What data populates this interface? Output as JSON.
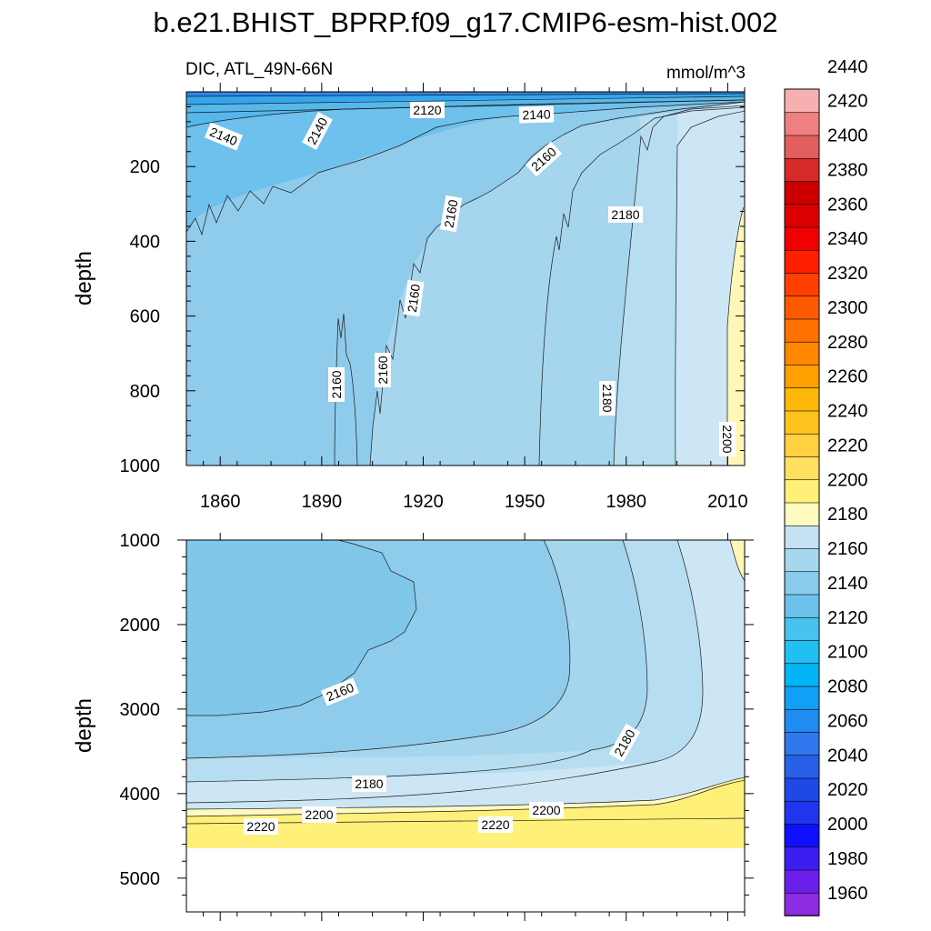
{
  "chart_data": {
    "type": "contour",
    "title": "b.e21.BHIST_BPRP.f09_g17.CMIP6-esm-hist.002",
    "left_subtitle": "DIC, ATL_49N-66N",
    "right_subtitle": "mmol/m^3",
    "ylabel": "depth",
    "colorbar": {
      "levels": [
        1960,
        1980,
        2000,
        2020,
        2040,
        2060,
        2080,
        2100,
        2120,
        2140,
        2160,
        2180,
        2200,
        2220,
        2240,
        2260,
        2280,
        2300,
        2320,
        2340,
        2360,
        2380,
        2400,
        2420,
        2440
      ],
      "colors": [
        "#8b2be2",
        "#6b1fe8",
        "#3c1ff0",
        "#1010ff",
        "#1f36ee",
        "#2048e6",
        "#2860e8",
        "#2f78ee",
        "#1f8cf0",
        "#10a0f5",
        "#00b4f5",
        "#22bff2",
        "#47c3ee",
        "#6cc2eb",
        "#8acbed",
        "#a5d8ee",
        "#c4e2f2",
        "#fffac0",
        "#fff07a",
        "#ffe060",
        "#ffd040",
        "#ffc31e",
        "#ffb70a",
        "#ffa000",
        "#ff8800",
        "#ff7000",
        "#ff5a00",
        "#ff4000",
        "#ff2000",
        "#f00000",
        "#dc0000",
        "#cc0000",
        "#d62a2a",
        "#e35e5e",
        "#f08080",
        "#f7b0b0"
      ]
    },
    "panels": [
      {
        "name": "upper",
        "x_ticks": [
          1860,
          1890,
          1920,
          1950,
          1980,
          2010
        ],
        "xlim": [
          1850,
          2015
        ],
        "y_ticks": [
          200,
          400,
          600,
          800,
          1000
        ],
        "ylim": [
          0,
          1000
        ],
        "contour_labels": [
          "2120",
          "2140",
          "2140",
          "2140",
          "2160",
          "2160",
          "2180",
          "2160",
          "2160",
          "2160",
          "2180",
          "2200"
        ]
      },
      {
        "name": "lower",
        "xlim": [
          1850,
          2015
        ],
        "y_ticks": [
          1000,
          2000,
          3000,
          4000,
          5000
        ],
        "ylim": [
          1000,
          5400
        ],
        "contour_labels": [
          "2160",
          "2180",
          "2180",
          "2200",
          "2200",
          "2220",
          "2220"
        ]
      }
    ]
  }
}
